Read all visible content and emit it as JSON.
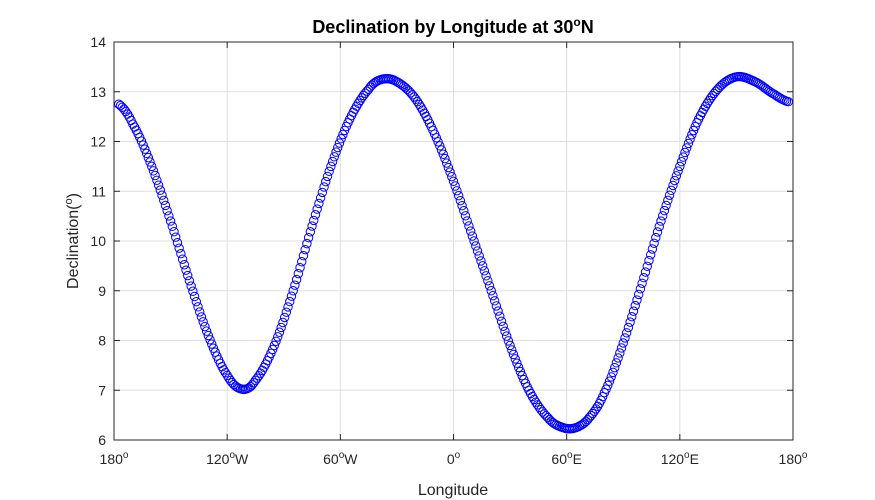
{
  "chart_data": {
    "type": "scatter",
    "title_main": "Declination by Longitude at 30",
    "title_sup": "o",
    "title_end": "N",
    "xlabel": "Longitude",
    "ylabel_main": "Declination(",
    "ylabel_sup": "o",
    "ylabel_end": ")",
    "xlim": [
      -180,
      180
    ],
    "ylim": [
      6,
      14
    ],
    "grid": true,
    "marker": "circle-open",
    "color": "#0000ff",
    "x_ticks": [
      {
        "value": -180,
        "label": "180",
        "sup": "o",
        "suffix": ""
      },
      {
        "value": -120,
        "label": "120",
        "sup": "o",
        "suffix": "W"
      },
      {
        "value": -60,
        "label": "60",
        "sup": "o",
        "suffix": "W"
      },
      {
        "value": 0,
        "label": "0",
        "sup": "o",
        "suffix": ""
      },
      {
        "value": 60,
        "label": "60",
        "sup": "o",
        "suffix": "E"
      },
      {
        "value": 120,
        "label": "120",
        "sup": "o",
        "suffix": "E"
      },
      {
        "value": 180,
        "label": "180",
        "sup": "o",
        "suffix": ""
      }
    ],
    "y_ticks": [
      6,
      7,
      8,
      9,
      10,
      11,
      12,
      13,
      14
    ],
    "series": [
      {
        "x": [
          -177.5,
          -170,
          -160,
          -150,
          -140,
          -130,
          -120,
          -112,
          -105,
          -95,
          -85,
          -75,
          -65,
          -55,
          -45,
          -38,
          -30,
          -20,
          -10,
          0,
          10,
          20,
          30,
          40,
          50,
          58,
          65,
          72,
          80,
          90,
          100,
          110,
          120,
          130,
          140,
          150,
          160,
          170,
          177.5
        ],
        "y": [
          12.75,
          12.35,
          11.5,
          10.4,
          9.2,
          8.1,
          7.3,
          7.02,
          7.2,
          7.9,
          9.0,
          10.3,
          11.5,
          12.45,
          13.05,
          13.25,
          13.2,
          12.85,
          12.15,
          11.2,
          10.1,
          9.0,
          7.9,
          7.0,
          6.45,
          6.25,
          6.25,
          6.45,
          6.95,
          7.95,
          9.15,
          10.4,
          11.5,
          12.45,
          13.05,
          13.3,
          13.2,
          12.95,
          12.8
        ]
      }
    ]
  }
}
